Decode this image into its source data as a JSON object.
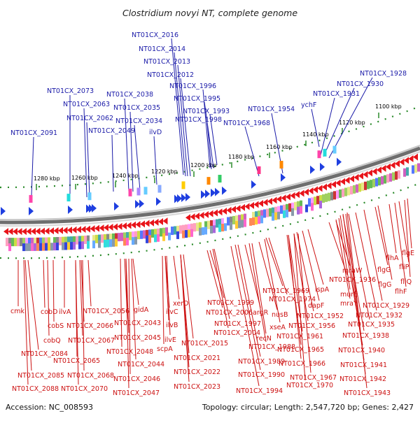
{
  "title": "Clostridium novyi NT, complete genome",
  "footer": {
    "accession": "Accession: NC_008593",
    "stats": "Topology: circular; Length: 2,547,720 bp; Genes: 2,427"
  },
  "colors": {
    "top_labels": "#1a1aa8",
    "bottom_labels": "#cc1111",
    "forward_arrows": "#1f3fe0",
    "reverse_arrows": "#e8141a",
    "tick_marks": "#2a8a2a",
    "backbone": "#6e6e6e"
  },
  "kbp_ticks": [
    "1280 kbp",
    "1260 kbp",
    "1240 kbp",
    "1220 kbp",
    "1200 kbp",
    "1180 kbp",
    "1160 kbp",
    "1140 kbp",
    "1120 kbp",
    "1100 kbp"
  ],
  "top_labels": [
    "NT01CX_2016",
    "NT01CX_2014",
    "NT01CX_2013",
    "NT01CX_2012",
    "NT01CX_1996",
    "NT01CX_1995",
    "NT01CX_1993",
    "NT01CX_1998",
    "NT01CX_2073",
    "NT01CX_2063",
    "NT01CX_2062",
    "NT01CX_2038",
    "NT01CX_2035",
    "NT01CX_2034",
    "NT01CX_2049",
    "ilvD",
    "NT01CX_2091",
    "NT01CX_1954",
    "NT01CX_1968",
    "ychF",
    "NT01CX_1928",
    "NT01CX_1930",
    "NT01CX_1931"
  ],
  "bottom_labels": [
    "cmk",
    "cobD",
    "ilvA",
    "cobS",
    "cobQ",
    "NT01CX_2084",
    "NT01CX_2085",
    "NT01CX_2088",
    "NT01CX_2056",
    "NT01CX_2066",
    "NT01CX_2067",
    "NT01CX_2065",
    "NT01CX_2068",
    "NT01CX_2070",
    "gidA",
    "NT01CX_2043",
    "NT01CX_2045",
    "NT01CX_2048",
    "NT01CX_2044",
    "NT01CX_2046",
    "NT01CX_2047",
    "ilvC",
    "ilvB",
    "ilvE",
    "scpA",
    "xerD",
    "NT01CX_2015",
    "NT01CX_2021",
    "NT01CX_2022",
    "NT01CX_2023",
    "NT01CX_1999",
    "NT01CX_2006",
    "NT01CX_1997",
    "NT01CX_2004",
    "argR",
    "nusB",
    "recN",
    "NT01CX_1988",
    "NT01CX_1989",
    "NT01CX_1990",
    "NT01CX_1994",
    "NT01CX_1969",
    "NT01CX_1974",
    "xseA",
    "lspA",
    "dapF",
    "NT01CX_1952",
    "NT01CX_1956",
    "NT01CX_1961",
    "NT01CX_1965",
    "NT01CX_1966",
    "NT01CX_1967",
    "NT01CX_1970",
    "mraW",
    "NT01CX_1936",
    "murE",
    "mraY",
    "NT01CX_1929",
    "NT01CX_1932",
    "NT01CX_1935",
    "NT01CX_1938",
    "NT01CX_1940",
    "NT01CX_1941",
    "NT01CX_1942",
    "NT01CX_1943",
    "flhA",
    "flgG",
    "flgG",
    "fliP",
    "fliQ",
    "flhF",
    "flgE"
  ]
}
